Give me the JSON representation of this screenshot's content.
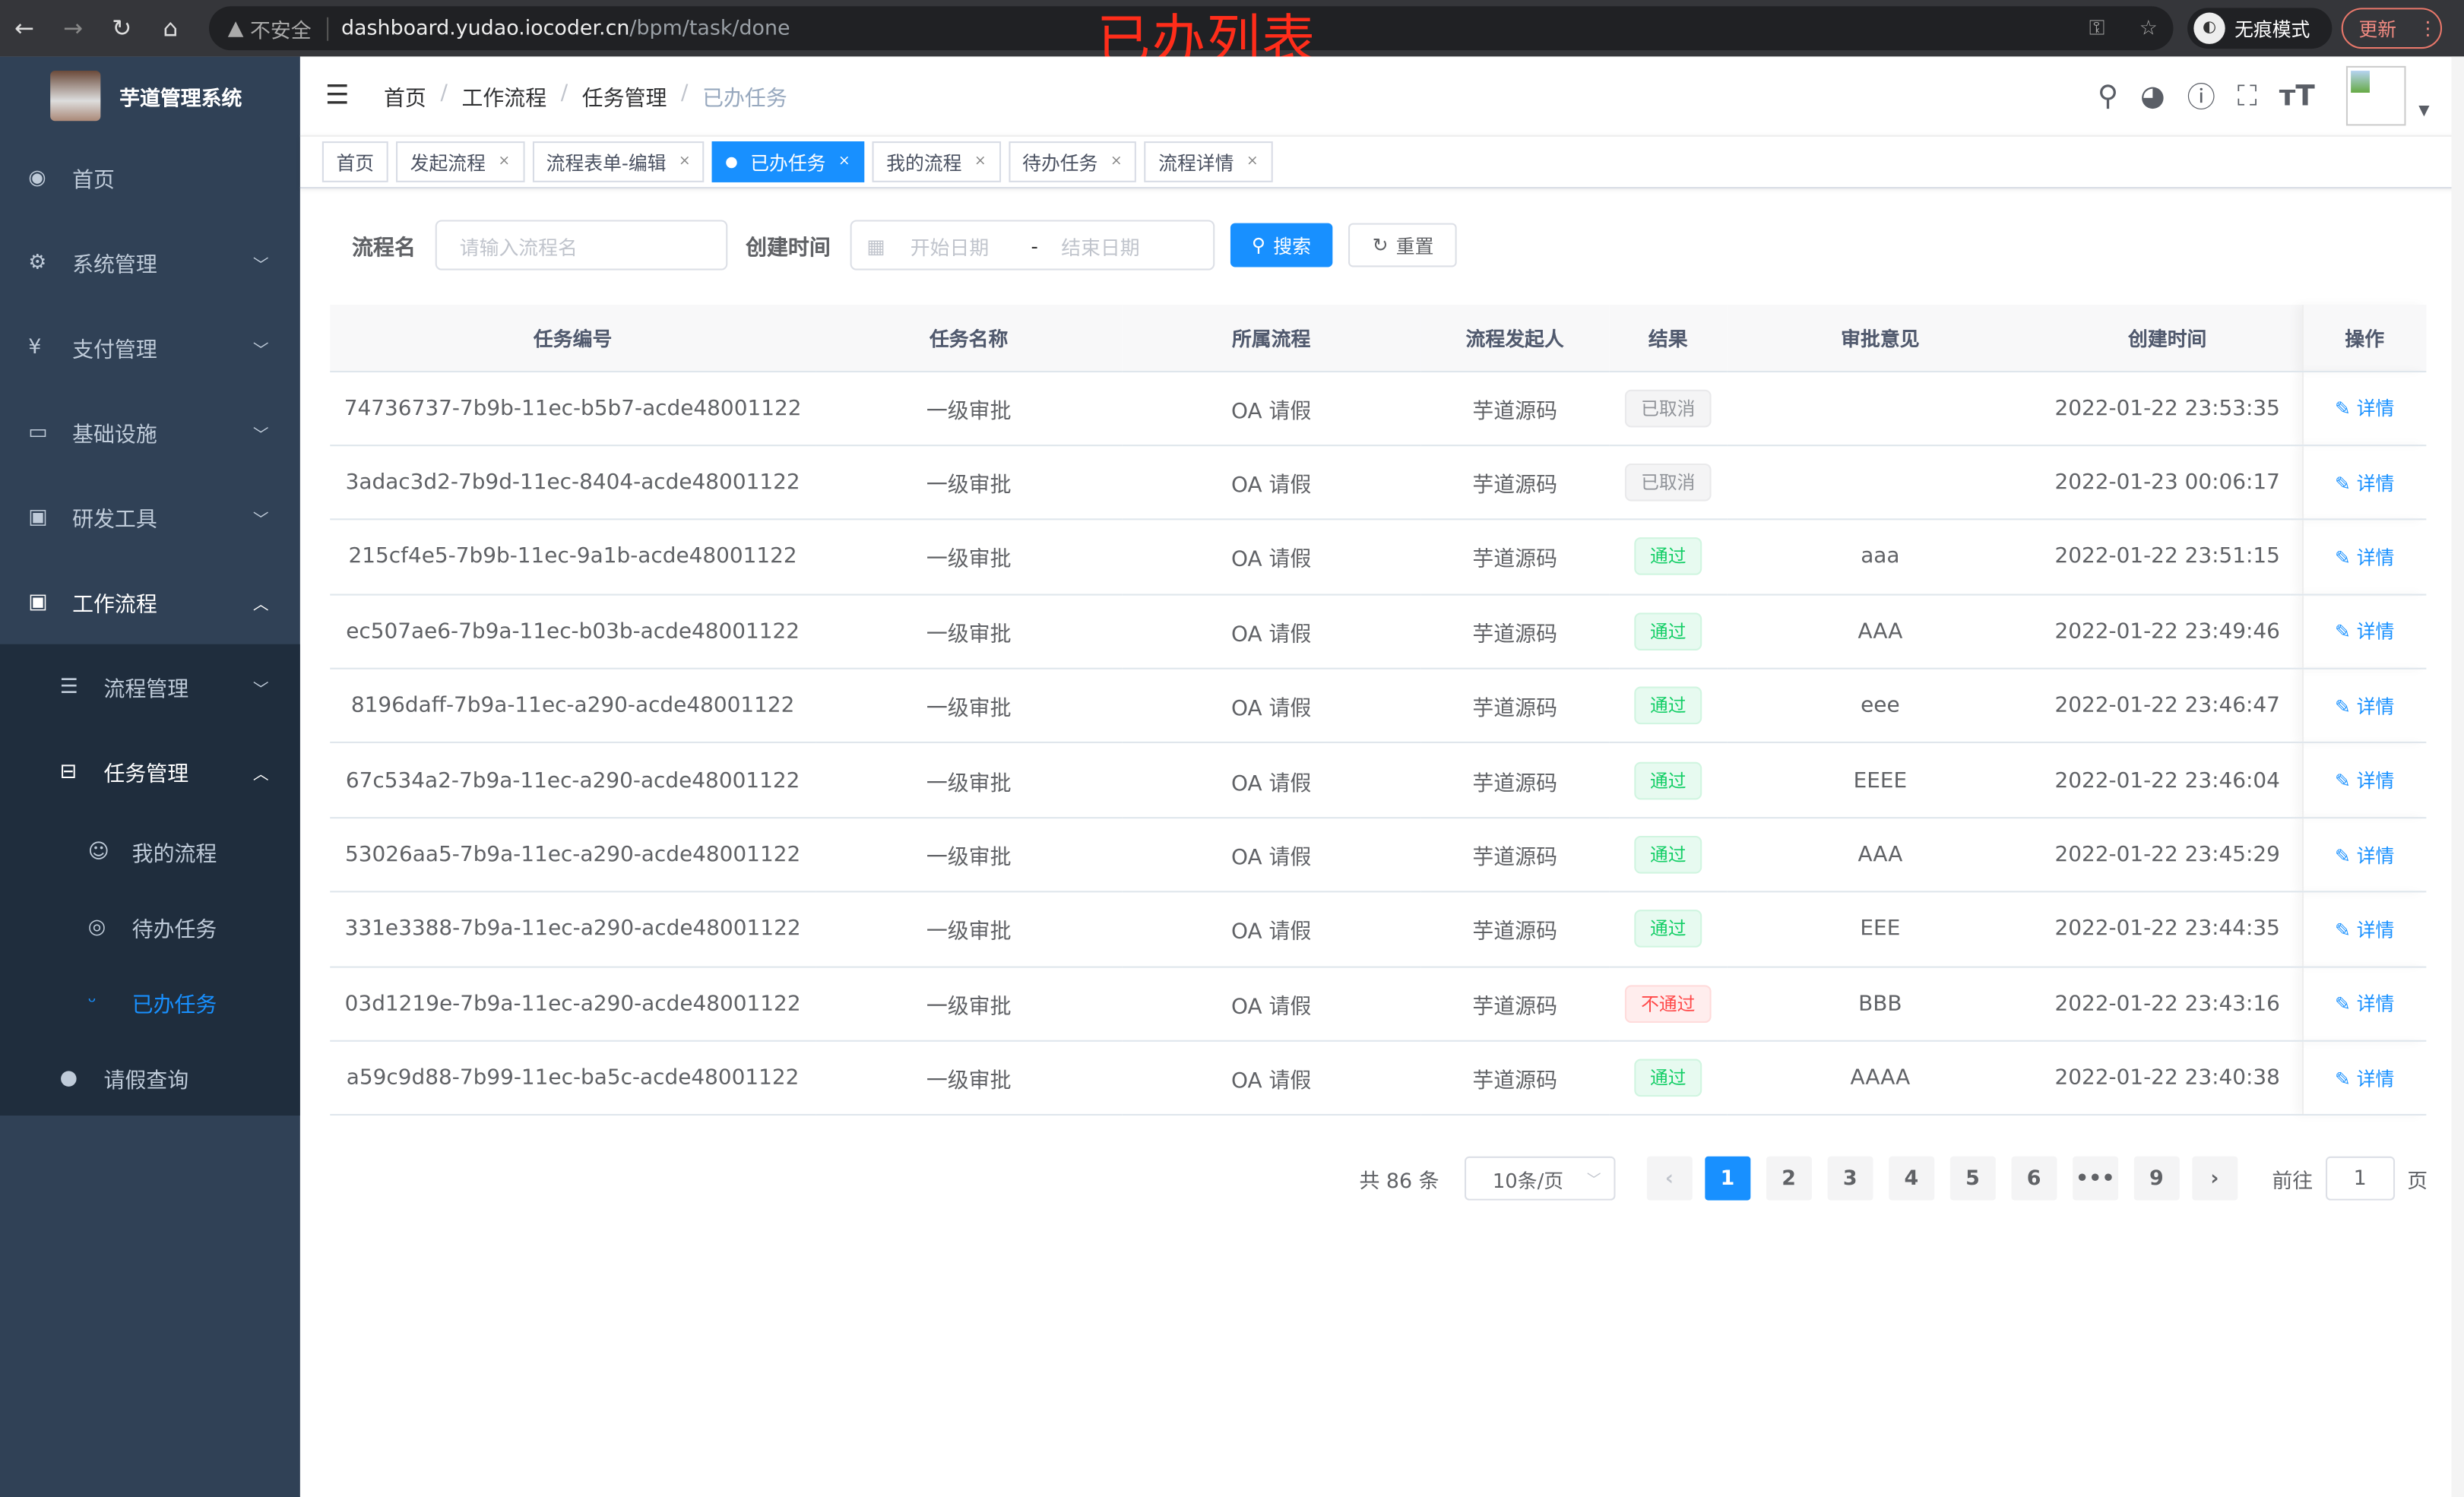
{
  "browser": {
    "security": "不安全",
    "url_host": "dashboard.yudao.iocoder.cn",
    "url_path": "/bpm/task/done",
    "incognito": "无痕模式",
    "update": "更新"
  },
  "overlay_title": "已办列表",
  "app": {
    "name": "芋道管理系统"
  },
  "sidebar": {
    "items": [
      {
        "label": "首页",
        "icon": "dashboard-icon"
      },
      {
        "label": "系统管理",
        "icon": "gear-icon"
      },
      {
        "label": "支付管理",
        "icon": "yen-icon"
      },
      {
        "label": "基础设施",
        "icon": "monitor-icon"
      },
      {
        "label": "研发工具",
        "icon": "toolbox-icon"
      },
      {
        "label": "工作流程",
        "icon": "toolbox-icon"
      }
    ],
    "sub": [
      {
        "label": "流程管理"
      },
      {
        "label": "任务管理"
      }
    ],
    "sub3": [
      {
        "label": "我的流程"
      },
      {
        "label": "待办任务"
      },
      {
        "label": "已办任务"
      }
    ],
    "extra": {
      "label": "请假查询"
    }
  },
  "breadcrumb": [
    "首页",
    "工作流程",
    "任务管理",
    "已办任务"
  ],
  "tags": [
    "首页",
    "发起流程",
    "流程表单-编辑",
    "已办任务",
    "我的流程",
    "待办任务",
    "流程详情"
  ],
  "filter": {
    "name_label": "流程名",
    "name_placeholder": "请输入流程名",
    "time_label": "创建时间",
    "start_placeholder": "开始日期",
    "sep": "-",
    "end_placeholder": "结束日期",
    "search": "搜索",
    "reset": "重置"
  },
  "table": {
    "headers": [
      "任务编号",
      "任务名称",
      "所属流程",
      "流程发起人",
      "结果",
      "审批意见",
      "创建时间",
      "操作"
    ],
    "rows": [
      [
        "74736737-7b9b-11ec-b5b7-acde48001122",
        "一级审批",
        "OA 请假",
        "芋道源码",
        "已取消",
        "",
        "2022-01-22 23:53:35",
        "详情"
      ],
      [
        "3adac3d2-7b9d-11ec-8404-acde48001122",
        "一级审批",
        "OA 请假",
        "芋道源码",
        "已取消",
        "",
        "2022-01-23 00:06:17",
        "详情"
      ],
      [
        "215cf4e5-7b9b-11ec-9a1b-acde48001122",
        "一级审批",
        "OA 请假",
        "芋道源码",
        "通过",
        "aaa",
        "2022-01-22 23:51:15",
        "详情"
      ],
      [
        "ec507ae6-7b9a-11ec-b03b-acde48001122",
        "一级审批",
        "OA 请假",
        "芋道源码",
        "通过",
        "AAA",
        "2022-01-22 23:49:46",
        "详情"
      ],
      [
        "8196daff-7b9a-11ec-a290-acde48001122",
        "一级审批",
        "OA 请假",
        "芋道源码",
        "通过",
        "eee",
        "2022-01-22 23:46:47",
        "详情"
      ],
      [
        "67c534a2-7b9a-11ec-a290-acde48001122",
        "一级审批",
        "OA 请假",
        "芋道源码",
        "通过",
        "EEEE",
        "2022-01-22 23:46:04",
        "详情"
      ],
      [
        "53026aa5-7b9a-11ec-a290-acde48001122",
        "一级审批",
        "OA 请假",
        "芋道源码",
        "通过",
        "AAA",
        "2022-01-22 23:45:29",
        "详情"
      ],
      [
        "331e3388-7b9a-11ec-a290-acde48001122",
        "一级审批",
        "OA 请假",
        "芋道源码",
        "通过",
        "EEE",
        "2022-01-22 23:44:35",
        "详情"
      ],
      [
        "03d1219e-7b9a-11ec-a290-acde48001122",
        "一级审批",
        "OA 请假",
        "芋道源码",
        "不通过",
        "BBB",
        "2022-01-22 23:43:16",
        "详情"
      ],
      [
        "a59c9d88-7b99-11ec-ba5c-acde48001122",
        "一级审批",
        "OA 请假",
        "芋道源码",
        "通过",
        "AAAA",
        "2022-01-22 23:40:38",
        "详情"
      ]
    ]
  },
  "result_colors": {
    "已取消": [
      "#909399",
      "#f4f4f5",
      "#e9e9eb"
    ],
    "通过": [
      "#13ce66",
      "#e7faf0",
      "#d0f5e0"
    ],
    "不通过": [
      "#ff4949",
      "#ffeded",
      "#ffdbdb"
    ]
  },
  "pagination": {
    "total": "共 86 条",
    "page_size": "10条/页",
    "pages": [
      "1",
      "2",
      "3",
      "4",
      "5",
      "6",
      "•••",
      "9"
    ],
    "current": "1",
    "goto_label": "前往",
    "goto_value": "1",
    "page_unit": "页"
  },
  "accent": "#1890ff"
}
